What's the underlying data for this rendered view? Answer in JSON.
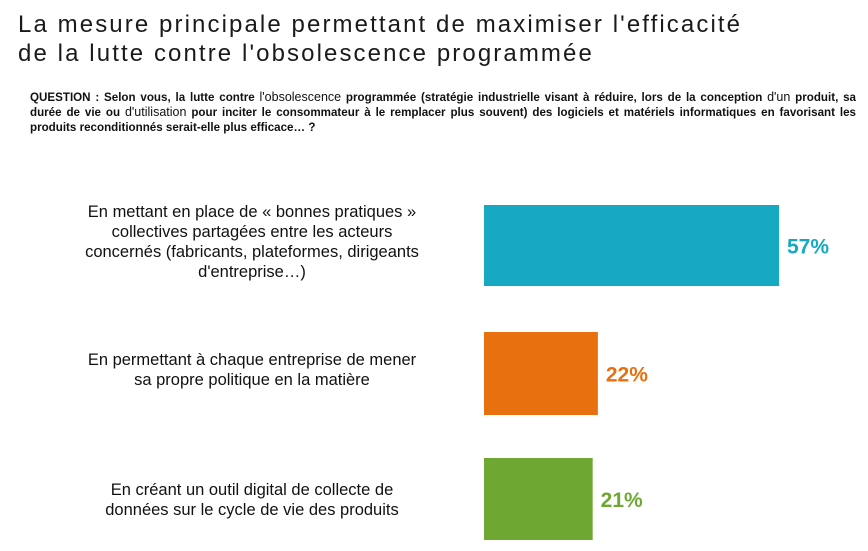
{
  "header": {
    "title_line1": "La mesure principale permettant de maximiser l'efficacité",
    "title_line2": "de la lutte contre l'obsolescence programmée"
  },
  "question": {
    "part1": "QUESTION : Selon vous, la lutte contre ",
    "part2": "l'obsolescence",
    "part3": " programmée (stratégie industrielle visant à réduire, lors de la conception ",
    "part4": "d'un",
    "part5": " produit, sa durée de vie ou ",
    "part6": "d'utilisation",
    "part7": " pour inciter le consommateur à le remplacer plus souvent) des logiciels et matériels informatiques en favorisant les produits reconditionnés serait-elle plus efficace… ?"
  },
  "chart_data": {
    "type": "bar",
    "orientation": "horizontal",
    "categories": [
      "En mettant en place de « bonnes pratiques » collectives partagées entre les acteurs concernés (fabricants, plateformes, dirigeants d'entreprise…)",
      "En permettant à chaque entreprise de mener sa propre politique en la matière",
      "En créant un outil digital de collecte de données sur le cycle de vie des produits"
    ],
    "category_lines": [
      [
        "En mettant en place de « bonnes pratiques »",
        "collectives partagées entre les acteurs",
        "concernés (fabricants, plateformes, dirigeants",
        "d'entreprise…)"
      ],
      [
        "En permettant à chaque entreprise de mener",
        "sa propre politique en la matière"
      ],
      [
        "En créant un outil digital de collecte de",
        "données sur le cycle de vie des produits"
      ]
    ],
    "values": [
      57,
      22,
      21
    ],
    "value_labels": [
      "57%",
      "22%",
      "21%"
    ],
    "colors": [
      "#17a9c1",
      "#e8700f",
      "#6ea832"
    ],
    "xlim": [
      0,
      100
    ],
    "grid": false,
    "legend": "none"
  }
}
